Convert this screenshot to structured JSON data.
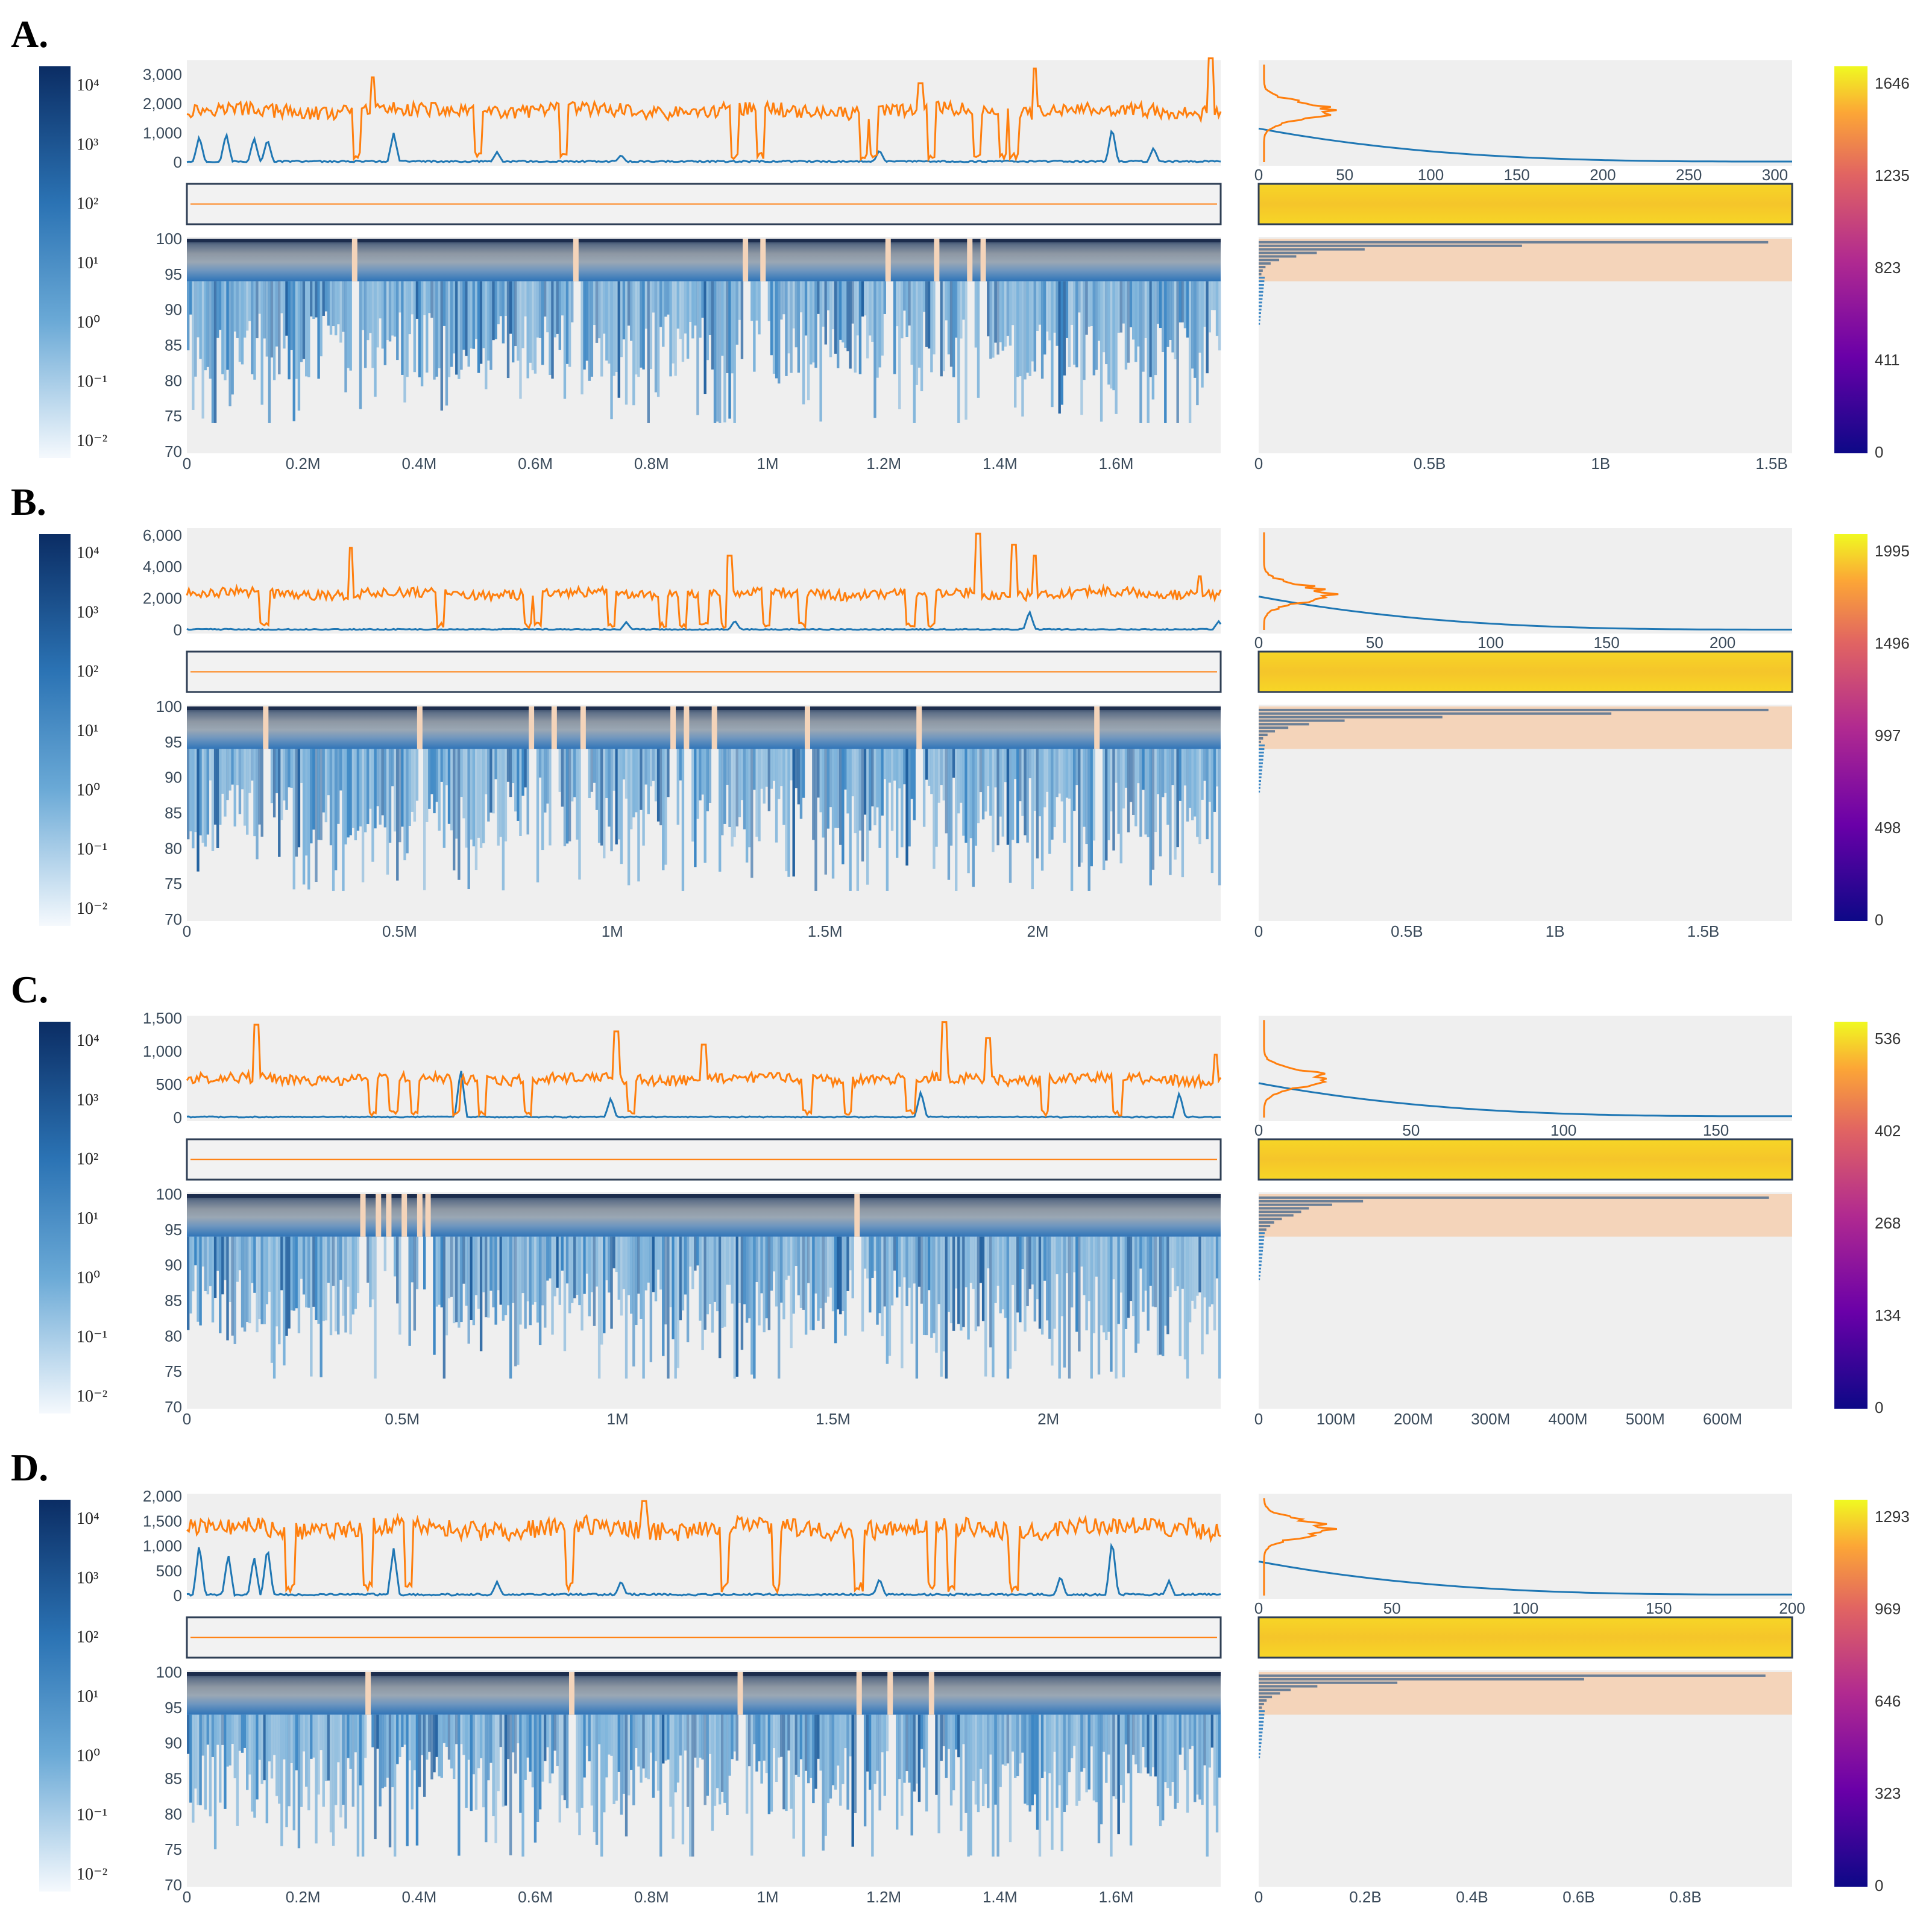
{
  "colors": {
    "coverage_line": "#ff7f0e",
    "reads_line": "#1f77b4",
    "plot_background": "#efefef",
    "identity_band": "#f4d4ba",
    "hist_bar": "#6b7f96"
  },
  "left_colorbar_ticks": [
    "10⁴",
    "10³",
    "10²",
    "10¹",
    "10⁰",
    "10⁻¹",
    "10⁻²"
  ],
  "chart_data": [
    {
      "panel_label": "A.",
      "type": "heatmap",
      "x_max": 1780000,
      "x_ticks": [
        "0",
        "0.2M",
        "0.4M",
        "0.6M",
        "0.8M",
        "1M",
        "1.2M",
        "1.4M",
        "1.6M"
      ],
      "x_tick_values": [
        0,
        200000,
        400000,
        600000,
        800000,
        1000000,
        1200000,
        1400000,
        1600000
      ],
      "coverage_ylim": [
        0,
        3400
      ],
      "coverage_y_ticks": [
        "0",
        "1,000",
        "2,000",
        "3,000"
      ],
      "coverage_y_values": [
        0,
        1000,
        2000,
        3000
      ],
      "coverage_baseline": 1750,
      "coverage_spikes": [
        {
          "x": 0.82,
          "v": 3200
        },
        {
          "x": 0.99,
          "v": 3550
        },
        {
          "x": 0.18,
          "v": 2900
        },
        {
          "x": 0.71,
          "v": 2700
        }
      ],
      "coverage_dips": [
        0.165,
        0.282,
        0.365,
        0.53,
        0.555,
        0.655,
        0.665,
        0.72,
        0.765,
        0.79,
        0.8
      ],
      "reads_spikes": [
        {
          "x": 0.012,
          "v": 900
        },
        {
          "x": 0.038,
          "v": 1000
        },
        {
          "x": 0.065,
          "v": 850
        },
        {
          "x": 0.078,
          "v": 800
        },
        {
          "x": 0.2,
          "v": 1000
        },
        {
          "x": 0.3,
          "v": 350
        },
        {
          "x": 0.42,
          "v": 250
        },
        {
          "x": 0.67,
          "v": 420
        },
        {
          "x": 0.895,
          "v": 1200
        },
        {
          "x": 0.935,
          "v": 500
        }
      ],
      "identity_ylim": [
        70,
        100
      ],
      "identity_y_ticks": [
        "70",
        "75",
        "80",
        "85",
        "90",
        "95",
        "100"
      ],
      "identity_y_values": [
        70,
        75,
        80,
        85,
        90,
        95,
        100
      ],
      "gap_columns": [
        0.162,
        0.376,
        0.54,
        0.557,
        0.678,
        0.725,
        0.757,
        0.77
      ],
      "hist_x_max": 310,
      "hist_x_ticks": [
        "0",
        "50",
        "100",
        "150",
        "200",
        "250",
        "300"
      ],
      "hist_x_tick_values": [
        0,
        50,
        100,
        150,
        200,
        250,
        300
      ],
      "identity_hist_max": 1560000000,
      "identity_hist_ticks": [
        "0",
        "0.5B",
        "1B",
        "1.5B"
      ],
      "identity_hist_tick_values": [
        0,
        500000000,
        1000000000,
        1500000000
      ],
      "identity_hist_bars": [
        {
          "y": 99.5,
          "v": 1490000000
        },
        {
          "y": 99,
          "v": 770000000
        },
        {
          "y": 98.5,
          "v": 310000000
        },
        {
          "y": 98,
          "v": 170000000
        },
        {
          "y": 97.5,
          "v": 110000000
        },
        {
          "y": 97,
          "v": 60000000
        },
        {
          "y": 96.5,
          "v": 35000000
        },
        {
          "y": 96,
          "v": 20000000
        },
        {
          "y": 95.5,
          "v": 12000000
        },
        {
          "y": 95,
          "v": 8000000
        }
      ],
      "colorbar_max": 1646,
      "colorbar_ticks": [
        "0",
        "411",
        "823",
        "1235",
        "1646"
      ]
    },
    {
      "panel_label": "B.",
      "type": "heatmap",
      "x_max": 2430000,
      "x_ticks": [
        "0",
        "0.5M",
        "1M",
        "1.5M",
        "2M"
      ],
      "x_tick_values": [
        0,
        500000,
        1000000,
        1500000,
        2000000
      ],
      "coverage_ylim": [
        0,
        6300
      ],
      "coverage_y_ticks": [
        "0",
        "2,000",
        "4,000",
        "6,000"
      ],
      "coverage_y_values": [
        0,
        2000,
        4000,
        6000
      ],
      "coverage_baseline": 2300,
      "coverage_spikes": [
        {
          "x": 0.159,
          "v": 5200
        },
        {
          "x": 0.525,
          "v": 4700
        },
        {
          "x": 0.765,
          "v": 6100
        },
        {
          "x": 0.8,
          "v": 5400
        },
        {
          "x": 0.82,
          "v": 4700
        },
        {
          "x": 0.98,
          "v": 3400
        }
      ],
      "coverage_dips": [
        0.075,
        0.245,
        0.33,
        0.34,
        0.41,
        0.46,
        0.48,
        0.5,
        0.52,
        0.56,
        0.595,
        0.7,
        0.72
      ],
      "reads_spikes": [
        {
          "x": 0.425,
          "v": 500
        },
        {
          "x": 0.53,
          "v": 600
        },
        {
          "x": 0.815,
          "v": 1200
        },
        {
          "x": 0.998,
          "v": 550
        }
      ],
      "identity_ylim": [
        70,
        100
      ],
      "identity_y_ticks": [
        "70",
        "75",
        "80",
        "85",
        "90",
        "95",
        "100"
      ],
      "identity_y_values": [
        70,
        75,
        80,
        85,
        90,
        95,
        100
      ],
      "gap_columns": [
        0.076,
        0.225,
        0.333,
        0.355,
        0.383,
        0.47,
        0.483,
        0.51,
        0.6,
        0.708,
        0.88
      ],
      "hist_x_max": 230,
      "hist_x_ticks": [
        "0",
        "50",
        "100",
        "150",
        "200"
      ],
      "hist_x_tick_values": [
        0,
        50,
        100,
        150,
        200
      ],
      "identity_hist_max": 1800000000,
      "identity_hist_ticks": [
        "0",
        "0.5B",
        "1B",
        "1.5B"
      ],
      "identity_hist_tick_values": [
        0,
        500000000,
        1000000000,
        1500000000
      ],
      "identity_hist_bars": [
        {
          "y": 99.5,
          "v": 1720000000
        },
        {
          "y": 99,
          "v": 1190000000
        },
        {
          "y": 98.5,
          "v": 620000000
        },
        {
          "y": 98,
          "v": 290000000
        },
        {
          "y": 97.5,
          "v": 170000000
        },
        {
          "y": 97,
          "v": 100000000
        },
        {
          "y": 96.5,
          "v": 55000000
        },
        {
          "y": 96,
          "v": 30000000
        },
        {
          "y": 95.5,
          "v": 15000000
        },
        {
          "y": 95,
          "v": 8000000
        }
      ],
      "colorbar_max": 1995,
      "colorbar_ticks": [
        "0",
        "498",
        "997",
        "1496",
        "1995"
      ]
    },
    {
      "panel_label": "C.",
      "type": "heatmap",
      "x_max": 2400000,
      "x_ticks": [
        "0",
        "0.5M",
        "1M",
        "1.5M",
        "2M"
      ],
      "x_tick_values": [
        0,
        500000,
        1000000,
        1500000,
        2000000
      ],
      "coverage_ylim": [
        0,
        1500
      ],
      "coverage_y_ticks": [
        "0",
        "500",
        "1,000",
        "1,500"
      ],
      "coverage_y_values": [
        0,
        500,
        1000,
        1500
      ],
      "coverage_baseline": 580,
      "coverage_spikes": [
        {
          "x": 0.067,
          "v": 1400
        },
        {
          "x": 0.415,
          "v": 1300
        },
        {
          "x": 0.5,
          "v": 1100
        },
        {
          "x": 0.733,
          "v": 1440
        },
        {
          "x": 0.775,
          "v": 1200
        },
        {
          "x": 0.995,
          "v": 950
        }
      ],
      "coverage_dips": [
        0.18,
        0.2,
        0.22,
        0.26,
        0.285,
        0.33,
        0.43,
        0.6,
        0.64,
        0.7,
        0.83,
        0.9
      ],
      "reads_spikes": [
        {
          "x": 0.265,
          "v": 750
        },
        {
          "x": 0.41,
          "v": 300
        },
        {
          "x": 0.71,
          "v": 400
        },
        {
          "x": 0.96,
          "v": 380
        }
      ],
      "identity_ylim": [
        70,
        100
      ],
      "identity_y_ticks": [
        "70",
        "75",
        "80",
        "85",
        "90",
        "95",
        "100"
      ],
      "identity_y_values": [
        70,
        75,
        80,
        85,
        90,
        95,
        100
      ],
      "gap_columns": [
        0.17,
        0.185,
        0.195,
        0.21,
        0.225,
        0.233,
        0.648
      ],
      "hist_x_max": 175,
      "hist_x_ticks": [
        "0",
        "50",
        "100",
        "150"
      ],
      "hist_x_tick_values": [
        0,
        50,
        100,
        150
      ],
      "identity_hist_max": 690000000,
      "identity_hist_ticks": [
        "0",
        "100M",
        "200M",
        "300M",
        "400M",
        "500M",
        "600M"
      ],
      "identity_hist_tick_values": [
        0,
        100000000,
        200000000,
        300000000,
        400000000,
        500000000,
        600000000
      ],
      "identity_hist_bars": [
        {
          "y": 99.5,
          "v": 660000000
        },
        {
          "y": 99,
          "v": 135000000
        },
        {
          "y": 98.5,
          "v": 95000000
        },
        {
          "y": 98,
          "v": 65000000
        },
        {
          "y": 97.5,
          "v": 55000000
        },
        {
          "y": 97,
          "v": 45000000
        },
        {
          "y": 96.5,
          "v": 30000000
        },
        {
          "y": 96,
          "v": 20000000
        },
        {
          "y": 95.5,
          "v": 15000000
        },
        {
          "y": 95,
          "v": 10000000
        }
      ],
      "colorbar_max": 536,
      "colorbar_ticks": [
        "0",
        "134",
        "268",
        "402",
        "536"
      ]
    },
    {
      "panel_label": "D.",
      "type": "heatmap",
      "x_max": 1780000,
      "x_ticks": [
        "0",
        "0.2M",
        "0.4M",
        "0.6M",
        "0.8M",
        "1M",
        "1.2M",
        "1.4M",
        "1.6M"
      ],
      "x_tick_values": [
        0,
        200000,
        400000,
        600000,
        800000,
        1000000,
        1200000,
        1400000,
        1600000
      ],
      "coverage_ylim": [
        0,
        2000
      ],
      "coverage_y_ticks": [
        "0",
        "500",
        "1,000",
        "1,500",
        "2,000"
      ],
      "coverage_y_values": [
        0,
        500,
        1000,
        1500,
        2000
      ],
      "coverage_baseline": 1350,
      "coverage_spikes": [
        {
          "x": 0.442,
          "v": 1900
        },
        {
          "x": 0.97,
          "v": 1550
        }
      ],
      "coverage_dips": [
        0.1,
        0.175,
        0.215,
        0.37,
        0.52,
        0.57,
        0.65,
        0.72,
        0.74,
        0.8
      ],
      "reads_spikes": [
        {
          "x": 0.012,
          "v": 1050
        },
        {
          "x": 0.04,
          "v": 850
        },
        {
          "x": 0.065,
          "v": 800
        },
        {
          "x": 0.078,
          "v": 1000
        },
        {
          "x": 0.2,
          "v": 950
        },
        {
          "x": 0.3,
          "v": 280
        },
        {
          "x": 0.42,
          "v": 300
        },
        {
          "x": 0.67,
          "v": 350
        },
        {
          "x": 0.845,
          "v": 400
        },
        {
          "x": 0.895,
          "v": 1150
        },
        {
          "x": 0.95,
          "v": 300
        }
      ],
      "identity_ylim": [
        70,
        100
      ],
      "identity_y_ticks": [
        "70",
        "75",
        "80",
        "85",
        "90",
        "95",
        "100"
      ],
      "identity_y_values": [
        70,
        75,
        80,
        85,
        90,
        95,
        100
      ],
      "gap_columns": [
        0.175,
        0.372,
        0.535,
        0.65,
        0.68,
        0.72
      ],
      "hist_x_max": 200,
      "hist_x_ticks": [
        "0",
        "50",
        "100",
        "150",
        "200"
      ],
      "hist_x_tick_values": [
        0,
        50,
        100,
        150,
        200
      ],
      "identity_hist_max": 1000000000,
      "identity_hist_ticks": [
        "0",
        "0.2B",
        "0.4B",
        "0.6B",
        "0.8B"
      ],
      "identity_hist_tick_values": [
        0,
        200000000,
        400000000,
        600000000,
        800000000
      ],
      "identity_hist_bars": [
        {
          "y": 99.5,
          "v": 950000000
        },
        {
          "y": 99,
          "v": 610000000
        },
        {
          "y": 98.5,
          "v": 260000000
        },
        {
          "y": 98,
          "v": 110000000
        },
        {
          "y": 97.5,
          "v": 60000000
        },
        {
          "y": 97,
          "v": 40000000
        },
        {
          "y": 96.5,
          "v": 25000000
        },
        {
          "y": 96,
          "v": 15000000
        },
        {
          "y": 95.5,
          "v": 10000000
        },
        {
          "y": 95,
          "v": 6000000
        }
      ],
      "colorbar_max": 1293,
      "colorbar_ticks": [
        "0",
        "323",
        "646",
        "969",
        "1293"
      ]
    }
  ]
}
